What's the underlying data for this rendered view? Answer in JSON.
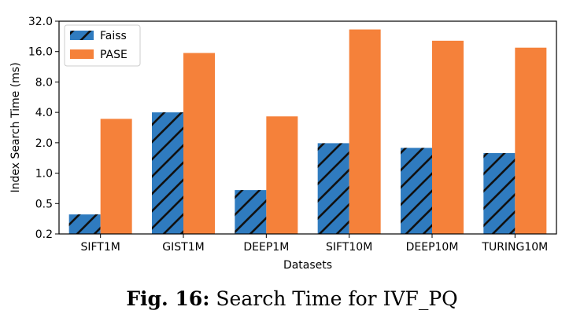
{
  "chart_data": {
    "type": "bar",
    "xlabel": "Datasets",
    "ylabel": "Index Search Time (ms)",
    "y_scale": "log2",
    "ylim": [
      0.25,
      32.0
    ],
    "y_ticks": [
      0.25,
      0.5,
      1.0,
      2.0,
      4.0,
      8.0,
      16.0,
      32.0
    ],
    "y_tick_labels": [
      "0.2",
      "0.5",
      "1.0",
      "2.0",
      "4.0",
      "8.0",
      "16.0",
      "32.0"
    ],
    "categories": [
      "SIFT1M",
      "GIST1M",
      "DEEP1M",
      "SIFT10M",
      "DEEP10M",
      "TURING10M"
    ],
    "series": [
      {
        "name": "Faiss",
        "color": "#2f7bbf",
        "hatch": "diagonal",
        "values": [
          0.39,
          4.0,
          0.68,
          1.98,
          1.78,
          1.58
        ]
      },
      {
        "name": "PASE",
        "color": "#f5813a",
        "values": [
          3.45,
          15.5,
          3.65,
          26.5,
          20.5,
          17.5
        ]
      }
    ],
    "legend_position": "top-left",
    "grid": false
  },
  "caption": {
    "label": "Fig. 16:",
    "text": "Search Time for IVF_PQ"
  }
}
